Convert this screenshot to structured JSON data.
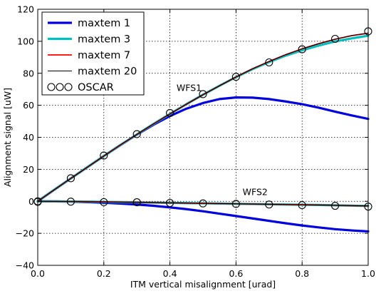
{
  "chart_data": {
    "type": "line",
    "xlabel": "ITM vertical misalignment [urad]",
    "ylabel": "Alignment signal [uW]",
    "xlim": [
      0.0,
      1.0
    ],
    "ylim": [
      -40,
      120
    ],
    "xticks": [
      "0.0",
      "0.2",
      "0.4",
      "0.6",
      "0.8",
      "1.0"
    ],
    "yticks": [
      "−40",
      "−20",
      "0",
      "20",
      "40",
      "60",
      "80",
      "100",
      "120"
    ],
    "grid": true,
    "legend_position": "top-left",
    "legend": [
      {
        "label": "maxtem 1",
        "color": "#0000dd",
        "style": "thick-line"
      },
      {
        "label": "maxtem 3",
        "color": "#00bfbf",
        "style": "thick-line"
      },
      {
        "label": "maxtem 7",
        "color": "#ff0000",
        "style": "line"
      },
      {
        "label": "maxtem 20",
        "color": "#000000",
        "style": "thin-line"
      },
      {
        "label": "OSCAR",
        "color": "#000000",
        "style": "circles"
      }
    ],
    "annotations": [
      {
        "text": "WFS1",
        "x": 0.42,
        "y": 69
      },
      {
        "text": "WFS2",
        "x": 0.62,
        "y": 4
      }
    ],
    "x": [
      0.0,
      0.05,
      0.1,
      0.15,
      0.2,
      0.25,
      0.3,
      0.35,
      0.4,
      0.45,
      0.5,
      0.55,
      0.6,
      0.65,
      0.7,
      0.75,
      0.8,
      0.85,
      0.9,
      0.95,
      1.0
    ],
    "series": [
      {
        "name": "maxtem 1",
        "group": "WFS1",
        "values": [
          0,
          7.2,
          14.3,
          21.3,
          28.3,
          35.1,
          41.7,
          47.8,
          53.3,
          57.9,
          61.4,
          63.9,
          64.9,
          64.8,
          63.9,
          62.4,
          60.7,
          58.5,
          56.0,
          53.7,
          51.5
        ]
      },
      {
        "name": "maxtem 3",
        "group": "WFS1",
        "values": [
          0,
          7.2,
          14.3,
          21.3,
          28.3,
          35.2,
          41.8,
          48.3,
          54.6,
          60.7,
          66.6,
          72.2,
          77.6,
          82.6,
          87.0,
          91.0,
          94.4,
          97.3,
          99.9,
          101.8,
          103.5
        ]
      },
      {
        "name": "maxtem 7",
        "group": "WFS1",
        "values": [
          0,
          7.2,
          14.3,
          21.3,
          28.3,
          35.2,
          41.8,
          48.3,
          54.6,
          60.7,
          66.6,
          72.2,
          77.7,
          82.8,
          87.4,
          91.6,
          95.3,
          98.5,
          101.3,
          103.5,
          105.0
        ]
      },
      {
        "name": "maxtem 20",
        "group": "WFS1",
        "values": [
          0,
          7.2,
          14.3,
          21.3,
          28.3,
          35.2,
          41.8,
          48.3,
          54.6,
          60.7,
          66.6,
          72.2,
          77.7,
          82.8,
          87.4,
          91.6,
          95.3,
          98.5,
          101.3,
          103.6,
          105.2
        ]
      },
      {
        "name": "maxtem 1",
        "group": "WFS2",
        "values": [
          0,
          -0.05,
          -0.2,
          -0.5,
          -0.9,
          -1.4,
          -2.0,
          -2.8,
          -3.8,
          -4.9,
          -6.2,
          -7.7,
          -9.2,
          -10.7,
          -12.2,
          -13.7,
          -15.1,
          -16.3,
          -17.4,
          -18.2,
          -18.8
        ]
      },
      {
        "name": "maxtem 3",
        "group": "WFS2",
        "values": [
          0,
          -0.05,
          -0.1,
          -0.2,
          -0.35,
          -0.5,
          -0.65,
          -0.8,
          -0.95,
          -1.1,
          -1.25,
          -1.4,
          -1.55,
          -1.7,
          -1.85,
          -2.0,
          -2.15,
          -2.3,
          -2.5,
          -2.7,
          -2.9
        ]
      },
      {
        "name": "maxtem 7",
        "group": "WFS2",
        "values": [
          0,
          -0.05,
          -0.1,
          -0.2,
          -0.35,
          -0.5,
          -0.65,
          -0.8,
          -0.95,
          -1.1,
          -1.25,
          -1.4,
          -1.55,
          -1.7,
          -1.85,
          -2.0,
          -2.15,
          -2.3,
          -2.5,
          -2.7,
          -2.9
        ]
      },
      {
        "name": "maxtem 20",
        "group": "WFS2",
        "values": [
          0,
          -0.05,
          -0.1,
          -0.2,
          -0.35,
          -0.5,
          -0.65,
          -0.8,
          -0.95,
          -1.1,
          -1.25,
          -1.4,
          -1.55,
          -1.7,
          -1.85,
          -2.0,
          -2.15,
          -2.3,
          -2.5,
          -2.7,
          -2.9
        ]
      }
    ],
    "markers": {
      "name": "OSCAR",
      "x": [
        0.0,
        0.1,
        0.2,
        0.3,
        0.4,
        0.5,
        0.6,
        0.7,
        0.8,
        0.9,
        1.0
      ],
      "wfs1": [
        0,
        14.4,
        28.6,
        42.0,
        55.2,
        67.0,
        77.8,
        86.8,
        95.0,
        101.5,
        106.2
      ],
      "wfs2": [
        -0.3,
        -0.2,
        -0.5,
        -0.6,
        -1.0,
        -1.3,
        -1.6,
        -2.0,
        -2.4,
        -2.8,
        -3.3
      ]
    }
  }
}
